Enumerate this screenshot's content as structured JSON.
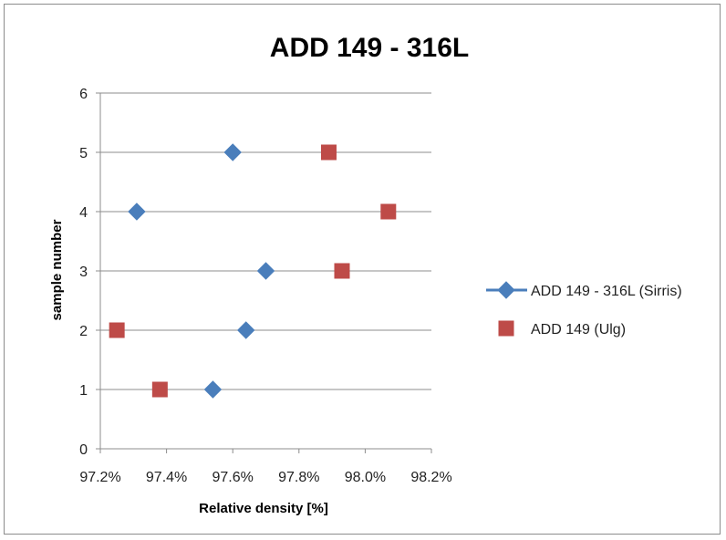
{
  "chart_data": {
    "type": "scatter",
    "title": "ADD 149 - 316L",
    "xlabel": "Relative density [%]",
    "ylabel": "sample number",
    "xlim": [
      97.2,
      98.2
    ],
    "ylim": [
      0,
      6
    ],
    "x_ticks": [
      97.2,
      97.4,
      97.6,
      97.8,
      98.0,
      98.2
    ],
    "x_tick_labels": [
      "97.2%",
      "97.4%",
      "97.6%",
      "97.8%",
      "98.0%",
      "98.2%"
    ],
    "y_ticks": [
      0,
      1,
      2,
      3,
      4,
      5,
      6
    ],
    "y_tick_labels": [
      "0",
      "1",
      "2",
      "3",
      "4",
      "5",
      "6"
    ],
    "grid": "horizontal",
    "legend_position": "right",
    "series": [
      {
        "name": "ADD 149 - 316L (Sirris)",
        "marker": "diamond",
        "color": "#4a7ebb",
        "points": [
          {
            "x": 97.54,
            "y": 1
          },
          {
            "x": 97.64,
            "y": 2
          },
          {
            "x": 97.7,
            "y": 3
          },
          {
            "x": 97.31,
            "y": 4
          },
          {
            "x": 97.6,
            "y": 5
          }
        ]
      },
      {
        "name": "ADD 149 (Ulg)",
        "marker": "square",
        "color": "#be4b48",
        "points": [
          {
            "x": 97.38,
            "y": 1
          },
          {
            "x": 97.25,
            "y": 2
          },
          {
            "x": 97.93,
            "y": 3
          },
          {
            "x": 98.07,
            "y": 4
          },
          {
            "x": 97.89,
            "y": 5
          }
        ]
      }
    ]
  }
}
